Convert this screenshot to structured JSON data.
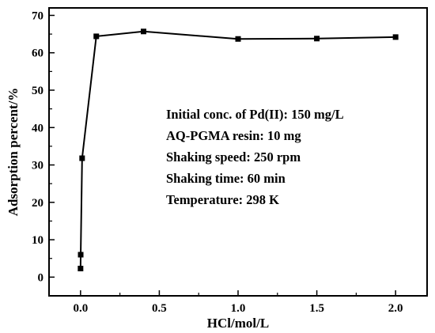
{
  "chart_data": {
    "type": "line",
    "title": "",
    "xlabel": "HCl/mol/L",
    "ylabel": "Adsorption percent/%",
    "xlim": [
      -0.2,
      2.2
    ],
    "ylim": [
      -5,
      72
    ],
    "x_ticks": [
      0.0,
      0.5,
      1.0,
      1.5,
      2.0
    ],
    "x_tick_labels": [
      "0.0",
      "0.5",
      "1.0",
      "1.5",
      "2.0"
    ],
    "y_ticks": [
      0,
      10,
      20,
      30,
      40,
      50,
      60,
      70
    ],
    "y_tick_labels": [
      "0",
      "10",
      "20",
      "30",
      "40",
      "50",
      "60",
      "70"
    ],
    "grid": false,
    "legend": "none",
    "marker": "square",
    "line_color": "#000000",
    "series": [
      {
        "x": [
          0.0,
          0.001,
          0.01,
          0.1,
          0.4,
          1.0,
          1.5,
          2.0
        ],
        "y": [
          2.3,
          6.0,
          31.8,
          64.4,
          65.7,
          63.7,
          63.8,
          64.2
        ]
      }
    ],
    "annotations": [
      "Initial conc. of Pd(II): 150 mg/L",
      "AQ-PGMA resin: 10 mg",
      "Shaking speed: 250 rpm",
      "Shaking time: 60 min",
      "Temperature: 298 K"
    ]
  }
}
